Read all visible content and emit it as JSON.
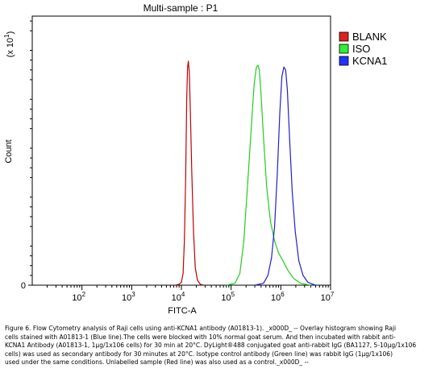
{
  "chart_data": {
    "type": "line",
    "title": "Multi-sample : P1",
    "xlabel": "FITC-A",
    "ylabel": "Count",
    "y_multiplier_label": "(x 10",
    "y_multiplier_exp": "1",
    "x_scale": "log",
    "xlim": [
      10,
      10000000
    ],
    "ylim": [
      0,
      275
    ],
    "x_ticks": [
      {
        "base": "10",
        "exp": "2"
      },
      {
        "base": "10",
        "exp": "3"
      },
      {
        "base": "10",
        "exp": "4"
      },
      {
        "base": "10",
        "exp": "5"
      },
      {
        "base": "10",
        "exp": "6"
      },
      {
        "base": "10",
        "exp": "7"
      }
    ],
    "y_ticks": [
      "0",
      "50",
      "100",
      "150",
      "200",
      "250"
    ],
    "legend_position": "top-right (outside)",
    "grid": false,
    "series": [
      {
        "name": "BLANK",
        "color": "#c00000",
        "swatch": "#e02020",
        "points": [
          [
            7500,
            0
          ],
          [
            9000,
            1
          ],
          [
            10000,
            3
          ],
          [
            10800,
            12
          ],
          [
            11500,
            45
          ],
          [
            12200,
            110
          ],
          [
            12800,
            190
          ],
          [
            13300,
            222
          ],
          [
            13800,
            229
          ],
          [
            14400,
            218
          ],
          [
            15200,
            175
          ],
          [
            16200,
            115
          ],
          [
            17500,
            55
          ],
          [
            19000,
            18
          ],
          [
            21000,
            5
          ],
          [
            24000,
            1
          ],
          [
            28000,
            0
          ]
        ]
      },
      {
        "name": "ISO",
        "color": "#22cc22",
        "swatch": "#33ee33",
        "points": [
          [
            80000,
            0
          ],
          [
            120000,
            2
          ],
          [
            150000,
            12
          ],
          [
            180000,
            45
          ],
          [
            210000,
            95
          ],
          [
            250000,
            155
          ],
          [
            290000,
            205
          ],
          [
            320000,
            222
          ],
          [
            345000,
            225
          ],
          [
            370000,
            220
          ],
          [
            400000,
            195
          ],
          [
            450000,
            150
          ],
          [
            520000,
            100
          ],
          [
            620000,
            65
          ],
          [
            750000,
            45
          ],
          [
            900000,
            33
          ],
          [
            1100000,
            25
          ],
          [
            1400000,
            15
          ],
          [
            1800000,
            7
          ],
          [
            2500000,
            2
          ],
          [
            4000000,
            0
          ]
        ]
      },
      {
        "name": "KCNA1",
        "color": "#2020cc",
        "swatch": "#2233ff",
        "points": [
          [
            300000,
            0
          ],
          [
            450000,
            2
          ],
          [
            550000,
            10
          ],
          [
            650000,
            28
          ],
          [
            750000,
            60
          ],
          [
            850000,
            115
          ],
          [
            950000,
            175
          ],
          [
            1050000,
            213
          ],
          [
            1150000,
            223
          ],
          [
            1250000,
            220
          ],
          [
            1350000,
            200
          ],
          [
            1500000,
            150
          ],
          [
            1700000,
            95
          ],
          [
            1950000,
            55
          ],
          [
            2300000,
            25
          ],
          [
            2800000,
            10
          ],
          [
            3500000,
            3
          ],
          [
            5000000,
            0
          ]
        ]
      }
    ]
  },
  "caption": "Figure 6. Flow Cytometry analysis of Raji cells using anti-KCNA1 antibody (A01813-1). _x000D_ -- Overlay histogram showing Raji\ncells stained with A01813-1 (Blue line).The cells were blocked with 10% normal goat serum. And then incubated with rabbit anti-\nKCNA1 Antibody (A01813-1, 1μg/1x106 cells) for 30 min at 20°C. DyLight®488 conjugated goat anti-rabbit IgG (BA1127, 5-10μg/1x106\ncells) was used as secondary antibody for 30 minutes at 20°C. Isotype control antibody (Green line) was rabbit IgG (1μg/1x106)\nused under the same conditions. Unlabelled sample (Red line) was also used as a control._x000D_ --"
}
